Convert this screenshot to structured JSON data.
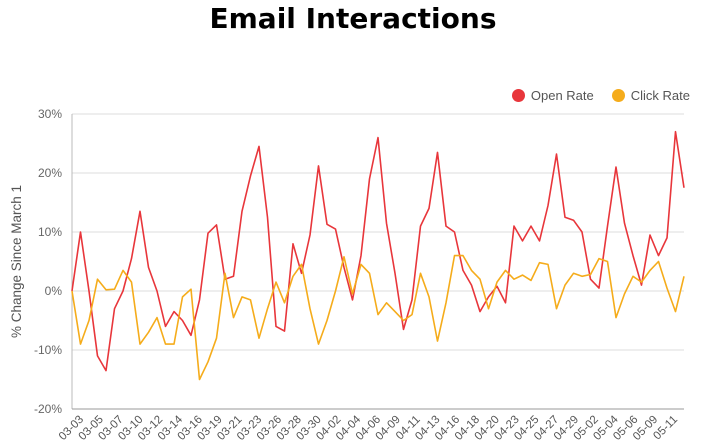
{
  "chart_data": {
    "type": "line",
    "title": "Email Interactions",
    "ylabel": "% Change Since March 1",
    "xlabel": "",
    "ylim": [
      -20,
      30
    ],
    "yticks": [
      -20,
      -10,
      0,
      10,
      20,
      30
    ],
    "y_tick_labels": [
      "-20%",
      "-10%",
      "0%",
      "10%",
      "20%",
      "30%"
    ],
    "grid": true,
    "legend": "top-right",
    "x_tick_labels": [
      "03-03",
      "03-05",
      "03-07",
      "03-10",
      "03-12",
      "03-14",
      "03-16",
      "03-19",
      "03-21",
      "03-23",
      "03-26",
      "03-28",
      "03-30",
      "04-02",
      "04-04",
      "04-06",
      "04-09",
      "04-11",
      "04-13",
      "04-16",
      "04-18",
      "04-20",
      "04-23",
      "04-25",
      "04-27",
      "04-29",
      "05-02",
      "05-04",
      "05-06",
      "05-09",
      "05-11"
    ],
    "series": [
      {
        "name": "Open Rate",
        "color": "#e8363b",
        "values": [
          0,
          10,
          0,
          -11,
          -13.5,
          -3,
          0,
          5.5,
          13.5,
          4,
          0,
          -6,
          -3.5,
          -5,
          -7.5,
          -1.5,
          9.8,
          11.2,
          2,
          2.5,
          13.5,
          19.5,
          24.5,
          12.5,
          -6,
          -6.8,
          8,
          3,
          9.5,
          21.2,
          11.3,
          10.5,
          4,
          -1.5,
          6,
          19,
          26,
          11.5,
          3,
          -6.5,
          -1.5,
          11,
          14,
          23.5,
          11,
          10,
          3.5,
          1,
          -3.5,
          -1,
          0.8,
          -2,
          11,
          8.5,
          11,
          8.5,
          14.5,
          23.2,
          12.5,
          12,
          10,
          2,
          0.5,
          11,
          21,
          11.5,
          6,
          1,
          9.5,
          6,
          9,
          27,
          17.5
        ]
      },
      {
        "name": "Click Rate",
        "color": "#f5ac1b",
        "values": [
          0,
          -9,
          -5,
          2,
          0.2,
          0.3,
          3.5,
          1.5,
          -9,
          -7,
          -4.5,
          -9,
          -9,
          -1,
          0.3,
          -15,
          -12,
          -8,
          3,
          -4.5,
          -1,
          -1.5,
          -8,
          -3,
          1.5,
          -2,
          2.5,
          4.5,
          -3,
          -9,
          -5,
          0,
          5.8,
          -0.5,
          4.5,
          3,
          -4,
          -2,
          -3.5,
          -5,
          -4,
          3,
          -1,
          -8.5,
          -2,
          6,
          6,
          3.5,
          2,
          -3,
          1.5,
          3.5,
          2,
          2.7,
          1.8,
          4.8,
          4.5,
          -3,
          1,
          3,
          2.5,
          2.8,
          5.5,
          5,
          -4.5,
          -0.5,
          2.5,
          1.5,
          3.5,
          5,
          0.5,
          -3.5,
          2.5
        ]
      }
    ]
  }
}
